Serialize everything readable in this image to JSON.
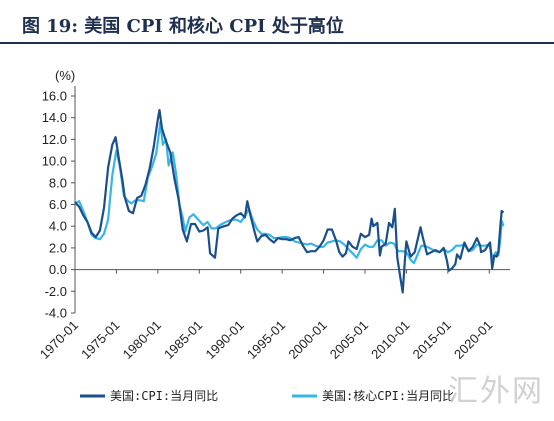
{
  "header": {
    "figure_title": "图  19:  美国 CPI 和核心 CPI 处于高位"
  },
  "watermark": {
    "text": "汇外网"
  },
  "chart_data": {
    "type": "line",
    "unit_label": "(%)",
    "xlabel": "",
    "ylabel": "",
    "xlim": [
      1970.0,
      2022.5
    ],
    "ylim": [
      -4.0,
      16.0
    ],
    "y_ticks": [
      -4,
      -2,
      0,
      2,
      4,
      6,
      8,
      10,
      12,
      14,
      16
    ],
    "y_tick_labels": [
      "-4.0",
      "-2.0",
      "0.0",
      "2.0",
      "4.0",
      "6.0",
      "8.0",
      "10.0",
      "12.0",
      "14.0",
      "16.0"
    ],
    "x_ticks": [
      1970,
      1975,
      1980,
      1985,
      1990,
      1995,
      2000,
      2005,
      2010,
      2015,
      2020
    ],
    "x_tick_labels": [
      "1970-01",
      "1975-01",
      "1980-01",
      "1985-01",
      "1990-01",
      "1995-01",
      "2000-01",
      "2005-01",
      "2010-01",
      "2015-01",
      "2020-01"
    ],
    "grid": false,
    "legend_position": "bottom",
    "series": [
      {
        "name": "美国:CPI:当月同比",
        "color": "#1b4f8c",
        "points": [
          [
            1970.0,
            6.2
          ],
          [
            1970.5,
            5.8
          ],
          [
            1971.0,
            5.0
          ],
          [
            1971.5,
            4.4
          ],
          [
            1972.0,
            3.4
          ],
          [
            1972.5,
            3.0
          ],
          [
            1973.0,
            3.6
          ],
          [
            1973.5,
            5.7
          ],
          [
            1974.0,
            9.4
          ],
          [
            1974.5,
            11.5
          ],
          [
            1974.9,
            12.2
          ],
          [
            1975.3,
            10.2
          ],
          [
            1975.7,
            8.4
          ],
          [
            1976.0,
            6.7
          ],
          [
            1976.5,
            5.4
          ],
          [
            1977.0,
            5.2
          ],
          [
            1977.5,
            6.6
          ],
          [
            1978.0,
            6.8
          ],
          [
            1978.5,
            7.8
          ],
          [
            1979.0,
            9.3
          ],
          [
            1979.5,
            11.3
          ],
          [
            1980.0,
            13.9
          ],
          [
            1980.2,
            14.7
          ],
          [
            1980.5,
            13.0
          ],
          [
            1981.0,
            11.8
          ],
          [
            1981.5,
            10.8
          ],
          [
            1982.0,
            8.4
          ],
          [
            1982.5,
            6.5
          ],
          [
            1983.0,
            3.7
          ],
          [
            1983.5,
            2.6
          ],
          [
            1984.0,
            4.2
          ],
          [
            1984.5,
            4.2
          ],
          [
            1985.0,
            3.5
          ],
          [
            1985.5,
            3.6
          ],
          [
            1986.0,
            3.9
          ],
          [
            1986.3,
            1.5
          ],
          [
            1986.9,
            1.1
          ],
          [
            1987.3,
            3.8
          ],
          [
            1988.0,
            4.0
          ],
          [
            1988.5,
            4.1
          ],
          [
            1989.0,
            4.7
          ],
          [
            1989.5,
            5.0
          ],
          [
            1990.0,
            5.2
          ],
          [
            1990.5,
            4.8
          ],
          [
            1990.8,
            6.3
          ],
          [
            1991.2,
            4.9
          ],
          [
            1991.7,
            3.4
          ],
          [
            1992.0,
            2.6
          ],
          [
            1992.5,
            3.1
          ],
          [
            1993.0,
            3.2
          ],
          [
            1993.5,
            2.8
          ],
          [
            1994.0,
            2.5
          ],
          [
            1994.5,
            2.9
          ],
          [
            1995.0,
            2.8
          ],
          [
            1995.5,
            2.8
          ],
          [
            1996.0,
            2.7
          ],
          [
            1996.5,
            2.9
          ],
          [
            1997.0,
            3.0
          ],
          [
            1997.5,
            2.2
          ],
          [
            1998.0,
            1.6
          ],
          [
            1998.5,
            1.7
          ],
          [
            1999.0,
            1.7
          ],
          [
            1999.5,
            2.1
          ],
          [
            2000.0,
            2.7
          ],
          [
            2000.5,
            3.7
          ],
          [
            2001.0,
            3.7
          ],
          [
            2001.5,
            2.7
          ],
          [
            2001.9,
            1.6
          ],
          [
            2002.3,
            1.2
          ],
          [
            2002.7,
            1.5
          ],
          [
            2003.0,
            2.6
          ],
          [
            2003.5,
            2.1
          ],
          [
            2004.0,
            1.9
          ],
          [
            2004.5,
            3.3
          ],
          [
            2005.0,
            3.0
          ],
          [
            2005.5,
            3.2
          ],
          [
            2005.8,
            4.7
          ],
          [
            2006.0,
            4.0
          ],
          [
            2006.5,
            4.3
          ],
          [
            2006.8,
            1.3
          ],
          [
            2007.0,
            2.1
          ],
          [
            2007.5,
            2.4
          ],
          [
            2007.9,
            4.3
          ],
          [
            2008.3,
            3.9
          ],
          [
            2008.6,
            5.6
          ],
          [
            2008.9,
            1.1
          ],
          [
            2009.2,
            -0.4
          ],
          [
            2009.55,
            -2.1
          ],
          [
            2009.9,
            1.8
          ],
          [
            2010.0,
            2.6
          ],
          [
            2010.5,
            1.2
          ],
          [
            2011.0,
            1.6
          ],
          [
            2011.7,
            3.9
          ],
          [
            2012.0,
            2.9
          ],
          [
            2012.5,
            1.4
          ],
          [
            2013.0,
            1.6
          ],
          [
            2013.5,
            1.8
          ],
          [
            2014.0,
            1.6
          ],
          [
            2014.5,
            2.0
          ],
          [
            2014.9,
            0.8
          ],
          [
            2015.1,
            -0.1
          ],
          [
            2015.5,
            0.1
          ],
          [
            2015.9,
            0.5
          ],
          [
            2016.1,
            1.4
          ],
          [
            2016.5,
            1.0
          ],
          [
            2017.0,
            2.5
          ],
          [
            2017.5,
            1.7
          ],
          [
            2018.0,
            2.1
          ],
          [
            2018.5,
            2.9
          ],
          [
            2018.9,
            2.2
          ],
          [
            2019.0,
            1.6
          ],
          [
            2019.5,
            1.8
          ],
          [
            2019.9,
            2.3
          ],
          [
            2020.1,
            2.5
          ],
          [
            2020.35,
            0.1
          ],
          [
            2020.6,
            1.3
          ],
          [
            2020.9,
            1.2
          ],
          [
            2021.1,
            1.7
          ],
          [
            2021.35,
            4.2
          ],
          [
            2021.5,
            5.4
          ],
          [
            2021.6,
            5.3
          ],
          [
            2021.7,
            5.4
          ]
        ]
      },
      {
        "name": "美国:核心CPI:当月同比",
        "color": "#36b5e6",
        "points": [
          [
            1970.0,
            6.1
          ],
          [
            1970.5,
            6.3
          ],
          [
            1971.0,
            5.4
          ],
          [
            1971.5,
            4.4
          ],
          [
            1972.0,
            3.2
          ],
          [
            1972.5,
            2.9
          ],
          [
            1973.0,
            2.8
          ],
          [
            1973.5,
            3.3
          ],
          [
            1974.0,
            4.6
          ],
          [
            1974.5,
            8.7
          ],
          [
            1975.0,
            11.0
          ],
          [
            1975.4,
            9.6
          ],
          [
            1975.9,
            6.8
          ],
          [
            1976.3,
            6.4
          ],
          [
            1976.8,
            6.1
          ],
          [
            1977.3,
            6.4
          ],
          [
            1977.8,
            6.4
          ],
          [
            1978.3,
            6.3
          ],
          [
            1978.8,
            8.5
          ],
          [
            1979.3,
            9.5
          ],
          [
            1979.8,
            10.7
          ],
          [
            1980.1,
            12.4
          ],
          [
            1980.3,
            13.6
          ],
          [
            1980.6,
            11.5
          ],
          [
            1981.0,
            12.0
          ],
          [
            1981.3,
            9.6
          ],
          [
            1981.8,
            10.8
          ],
          [
            1982.2,
            8.8
          ],
          [
            1982.6,
            6.0
          ],
          [
            1983.0,
            4.8
          ],
          [
            1983.3,
            3.5
          ],
          [
            1983.8,
            4.8
          ],
          [
            1984.3,
            5.1
          ],
          [
            1985.0,
            4.5
          ],
          [
            1985.5,
            4.1
          ],
          [
            1986.0,
            4.4
          ],
          [
            1986.5,
            3.8
          ],
          [
            1987.0,
            3.8
          ],
          [
            1987.5,
            4.1
          ],
          [
            1988.0,
            4.3
          ],
          [
            1988.5,
            4.5
          ],
          [
            1989.0,
            4.6
          ],
          [
            1989.5,
            4.6
          ],
          [
            1990.0,
            4.4
          ],
          [
            1990.5,
            4.9
          ],
          [
            1991.0,
            5.6
          ],
          [
            1991.5,
            4.5
          ],
          [
            1992.0,
            3.7
          ],
          [
            1992.5,
            3.3
          ],
          [
            1993.0,
            3.3
          ],
          [
            1993.5,
            3.2
          ],
          [
            1994.0,
            2.9
          ],
          [
            1994.5,
            2.9
          ],
          [
            1995.0,
            3.0
          ],
          [
            1995.5,
            3.0
          ],
          [
            1996.0,
            2.9
          ],
          [
            1996.5,
            2.6
          ],
          [
            1997.0,
            2.5
          ],
          [
            1997.5,
            2.4
          ],
          [
            1998.0,
            2.3
          ],
          [
            1998.5,
            2.4
          ],
          [
            1999.0,
            2.2
          ],
          [
            1999.5,
            2.1
          ],
          [
            2000.0,
            2.1
          ],
          [
            2000.5,
            2.5
          ],
          [
            2001.0,
            2.6
          ],
          [
            2001.5,
            2.7
          ],
          [
            2002.0,
            2.6
          ],
          [
            2002.5,
            2.3
          ],
          [
            2003.0,
            1.9
          ],
          [
            2003.5,
            1.5
          ],
          [
            2004.0,
            1.1
          ],
          [
            2004.5,
            1.9
          ],
          [
            2005.0,
            2.3
          ],
          [
            2005.5,
            2.1
          ],
          [
            2006.0,
            2.1
          ],
          [
            2006.5,
            2.7
          ],
          [
            2007.0,
            2.7
          ],
          [
            2007.5,
            2.2
          ],
          [
            2008.0,
            2.5
          ],
          [
            2008.5,
            2.4
          ],
          [
            2009.0,
            1.7
          ],
          [
            2009.5,
            1.7
          ],
          [
            2010.0,
            1.6
          ],
          [
            2010.5,
            0.9
          ],
          [
            2010.9,
            0.6
          ],
          [
            2011.3,
            1.3
          ],
          [
            2011.8,
            2.2
          ],
          [
            2012.0,
            2.2
          ],
          [
            2012.5,
            2.1
          ],
          [
            2013.0,
            1.9
          ],
          [
            2013.5,
            1.7
          ],
          [
            2014.0,
            1.6
          ],
          [
            2014.5,
            1.9
          ],
          [
            2015.0,
            1.6
          ],
          [
            2015.5,
            1.8
          ],
          [
            2016.0,
            2.2
          ],
          [
            2016.5,
            2.2
          ],
          [
            2017.0,
            2.3
          ],
          [
            2017.5,
            1.7
          ],
          [
            2018.0,
            1.8
          ],
          [
            2018.5,
            2.3
          ],
          [
            2019.0,
            2.2
          ],
          [
            2019.5,
            2.2
          ],
          [
            2020.0,
            2.3
          ],
          [
            2020.35,
            1.2
          ],
          [
            2020.5,
            1.2
          ],
          [
            2020.8,
            1.6
          ],
          [
            2021.1,
            1.3
          ],
          [
            2021.35,
            3.0
          ],
          [
            2021.5,
            4.5
          ],
          [
            2021.6,
            4.3
          ],
          [
            2021.7,
            4.0
          ]
        ]
      }
    ]
  }
}
